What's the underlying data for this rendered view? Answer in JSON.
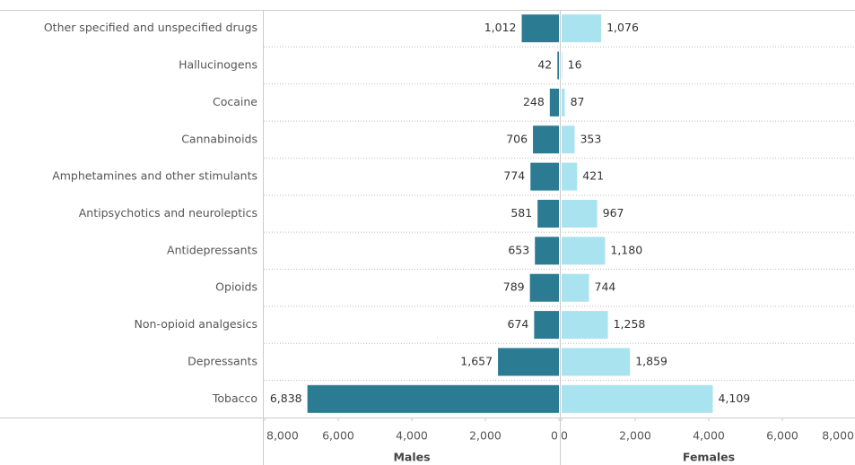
{
  "chart_data": {
    "type": "butterfly",
    "categories": [
      "Other specified and unspecified drugs",
      "Hallucinogens",
      "Cocaine",
      "Cannabinoids",
      "Amphetamines and other stimulants",
      "Antipsychotics and neuroleptics",
      "Antidepressants",
      "Opioids",
      "Non-opioid analgesics",
      "Depressants",
      "Tobacco"
    ],
    "series": [
      {
        "name": "Males",
        "color": "#2b7b93",
        "values": [
          1012,
          42,
          248,
          706,
          774,
          581,
          653,
          789,
          674,
          1657,
          6838
        ],
        "value_labels": [
          "1,012",
          "42",
          "248",
          "706",
          "774",
          "581",
          "653",
          "789",
          "674",
          "1,657",
          "6,838"
        ]
      },
      {
        "name": "Females",
        "color": "#a9e3ef",
        "values": [
          1076,
          16,
          87,
          353,
          421,
          967,
          1180,
          744,
          1258,
          1859,
          4109
        ],
        "value_labels": [
          "1,076",
          "16",
          "87",
          "353",
          "421",
          "967",
          "1,180",
          "744",
          "1,258",
          "1,859",
          "4,109"
        ]
      }
    ],
    "xlim": [
      0,
      8000
    ],
    "xticks": [
      0,
      {
        "value": 2000,
        "label": "2,000"
      },
      {
        "value": 4000,
        "label": "4,000"
      },
      {
        "value": 6000,
        "label": "6,000"
      },
      {
        "value": 8000,
        "label": "8,000"
      }
    ]
  }
}
